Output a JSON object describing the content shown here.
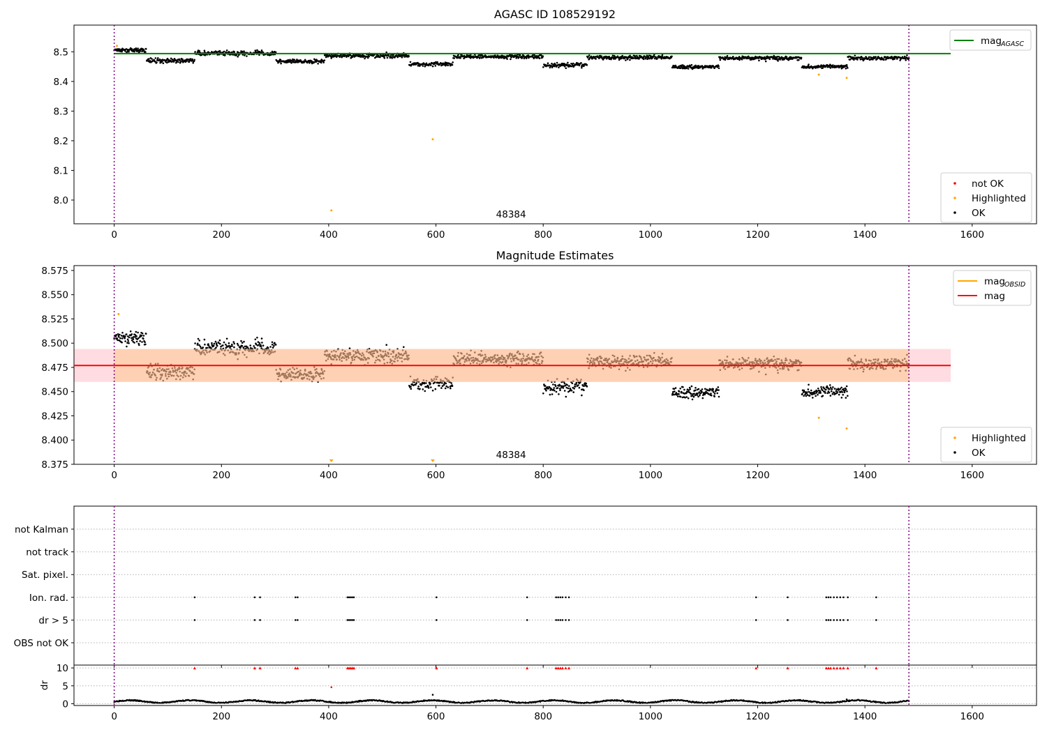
{
  "chart_data": [
    {
      "type": "scatter",
      "title": "AGASC ID 108529192",
      "xlim": [
        -75,
        1720
      ],
      "ylim": [
        7.92,
        8.59
      ],
      "x_ticks": [
        0,
        200,
        400,
        600,
        800,
        1000,
        1200,
        1400,
        1600
      ],
      "y_ticks": [
        8.0,
        8.1,
        8.2,
        8.3,
        8.4,
        8.5
      ],
      "y_tick_labels": [
        "8.0",
        "8.1",
        "8.2",
        "8.3",
        "8.4",
        "8.5"
      ],
      "obsid_label": "48384",
      "obsid_label_x": 740,
      "vlines": [
        0,
        1482
      ],
      "mag_agasc": 8.494,
      "legend_lines": [
        {
          "name": "mag",
          "sub": "AGASC",
          "color": "#008000"
        }
      ],
      "legend_markers": [
        {
          "name": "not OK",
          "color": "#ff0000"
        },
        {
          "name": "Highlighted",
          "color": "#ffa500"
        },
        {
          "name": "OK",
          "color": "#000000"
        }
      ],
      "highlighted": [
        [
          5,
          8.52
        ],
        [
          405,
          7.965
        ],
        [
          594,
          8.205
        ],
        [
          1314,
          8.423
        ],
        [
          1366,
          8.412
        ]
      ]
    },
    {
      "type": "scatter",
      "title": "Magnitude Estimates",
      "xlim": [
        -75,
        1720
      ],
      "ylim": [
        8.375,
        8.58
      ],
      "x_ticks": [
        0,
        200,
        400,
        600,
        800,
        1000,
        1200,
        1400,
        1600
      ],
      "y_ticks": [
        8.375,
        8.4,
        8.425,
        8.45,
        8.475,
        8.5,
        8.525,
        8.55,
        8.575
      ],
      "y_tick_labels": [
        "8.375",
        "8.400",
        "8.425",
        "8.450",
        "8.475",
        "8.500",
        "8.525",
        "8.550",
        "8.575"
      ],
      "obsid_label": "48384",
      "obsid_label_x": 740,
      "vlines": [
        0,
        1482
      ],
      "mag": 8.477,
      "mag_band": [
        8.46,
        8.494
      ],
      "legend_lines": [
        {
          "name": "mag",
          "sub": "OBSID",
          "color": "#ffa500"
        },
        {
          "name": "mag",
          "sub": "",
          "color": "#ff0000"
        }
      ],
      "legend_markers": [
        {
          "name": "Highlighted",
          "color": "#ffa500"
        },
        {
          "name": "OK",
          "color": "#000000"
        }
      ],
      "highlighted": [
        [
          8,
          8.53
        ],
        [
          1314,
          8.423
        ],
        [
          1366,
          8.412
        ]
      ],
      "off_scale_markers": [
        405,
        594
      ]
    },
    {
      "type": "scatter",
      "title": "",
      "xlim": [
        -75,
        1720
      ],
      "x_ticks": [
        0,
        200,
        400,
        600,
        800,
        1000,
        1200,
        1400,
        1600
      ],
      "categories": [
        "not Kalman",
        "not track",
        "Sat. pixel.",
        "Ion. rad.",
        "dr > 5",
        "OBS not OK"
      ],
      "flag_x": [
        150,
        262,
        272,
        338,
        342,
        435,
        438,
        441,
        444,
        447,
        601,
        770,
        824,
        828,
        832,
        836,
        842,
        848,
        1197,
        1256,
        1328,
        1332,
        1336,
        1342,
        1348,
        1354,
        1360,
        1368,
        1421
      ],
      "flag_rows": [
        "Ion. rad.",
        "dr > 5"
      ],
      "vlines": [
        0,
        1482
      ]
    },
    {
      "type": "scatter",
      "ylabel": "dr",
      "xlim": [
        -75,
        1720
      ],
      "ylim": [
        -0.5,
        10.8
      ],
      "x_ticks": [
        0,
        200,
        400,
        600,
        800,
        1000,
        1200,
        1400,
        1600
      ],
      "y_ticks": [
        0,
        5,
        10
      ],
      "y_tick_labels": [
        "0",
        "5",
        "10"
      ],
      "clipped_marker_value": 10,
      "clipped_x": [
        150,
        262,
        272,
        338,
        342,
        435,
        438,
        441,
        444,
        447,
        601,
        770,
        824,
        828,
        832,
        836,
        842,
        848,
        1197,
        1256,
        1328,
        1332,
        1336,
        1342,
        1348,
        1354,
        1360,
        1368,
        1421
      ],
      "red_points": [
        [
          405,
          4.6
        ]
      ],
      "outliers": [
        [
          594,
          2.5
        ],
        [
          1366,
          1.2
        ]
      ],
      "vlines": [
        0,
        1482
      ]
    }
  ],
  "segments": [
    {
      "x0": 0,
      "x1": 60,
      "m": 8.505,
      "n": 78,
      "s": 0.006
    },
    {
      "x0": 60,
      "x1": 150,
      "m": 8.47,
      "n": 110,
      "s": 0.007
    },
    {
      "x0": 150,
      "x1": 302,
      "m": 8.495,
      "n": 190,
      "s": 0.008
    },
    {
      "x0": 302,
      "x1": 392,
      "m": 8.468,
      "n": 110,
      "s": 0.006
    },
    {
      "x0": 392,
      "x1": 550,
      "m": 8.487,
      "n": 200,
      "s": 0.008
    },
    {
      "x0": 550,
      "x1": 632,
      "m": 8.458,
      "n": 96,
      "s": 0.007
    },
    {
      "x0": 632,
      "x1": 800,
      "m": 8.484,
      "n": 210,
      "s": 0.007
    },
    {
      "x0": 800,
      "x1": 882,
      "m": 8.455,
      "n": 96,
      "s": 0.008
    },
    {
      "x0": 882,
      "x1": 1040,
      "m": 8.481,
      "n": 200,
      "s": 0.007
    },
    {
      "x0": 1040,
      "x1": 1128,
      "m": 8.449,
      "n": 110,
      "s": 0.006
    },
    {
      "x0": 1128,
      "x1": 1282,
      "m": 8.479,
      "n": 195,
      "s": 0.007
    },
    {
      "x0": 1282,
      "x1": 1368,
      "m": 8.45,
      "n": 105,
      "s": 0.006
    },
    {
      "x0": 1368,
      "x1": 1482,
      "m": 8.479,
      "n": 145,
      "s": 0.007
    }
  ]
}
